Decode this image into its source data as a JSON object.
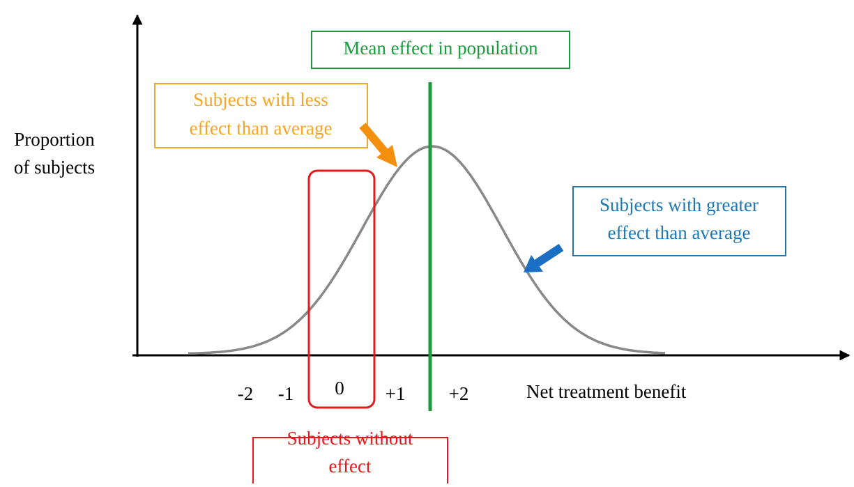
{
  "y_axis_label": [
    "Proportion",
    "of subjects"
  ],
  "x_axis_label": "Net treatment benefit",
  "x_tick_labels": [
    "-2",
    "-1",
    "0",
    "+1",
    "+2"
  ],
  "annotations": {
    "mean": [
      "Mean effect in population"
    ],
    "less": [
      "Subjects with less",
      "effect than average"
    ],
    "greater": [
      "Subjects with greater",
      "effect than average"
    ],
    "without": [
      "Subjects without",
      "effect"
    ]
  }
}
